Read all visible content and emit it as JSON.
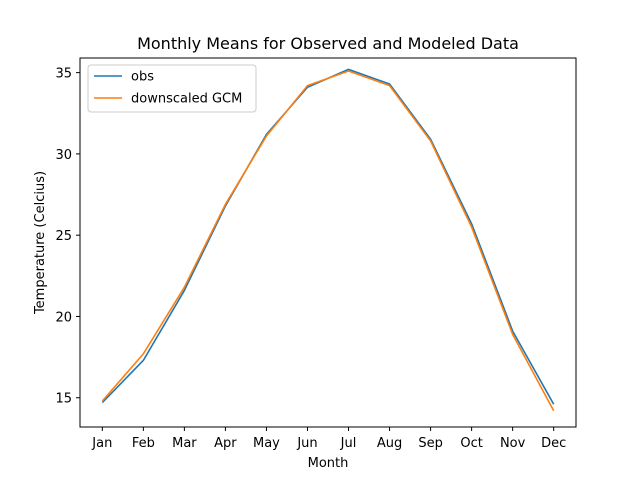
{
  "chart_data": {
    "type": "line",
    "title": "Monthly Means for Observed and Modeled Data",
    "xlabel": "Month",
    "ylabel": "Temperature (Celcius)",
    "categories": [
      "Jan",
      "Feb",
      "Mar",
      "Apr",
      "May",
      "Jun",
      "Jul",
      "Aug",
      "Sep",
      "Oct",
      "Nov",
      "Dec"
    ],
    "ylim": [
      13.2,
      35.9
    ],
    "yticks": [
      15,
      20,
      25,
      30,
      35
    ],
    "grid": false,
    "legend_position": "top-left",
    "series": [
      {
        "name": "obs",
        "color": "#1f77b4",
        "values": [
          14.7,
          17.3,
          21.6,
          26.8,
          31.2,
          34.1,
          35.2,
          34.3,
          30.9,
          25.7,
          19.1,
          14.6
        ]
      },
      {
        "name": "downscaled GCM",
        "color": "#ff7f0e",
        "values": [
          14.8,
          17.7,
          21.8,
          26.9,
          31.1,
          34.2,
          35.1,
          34.2,
          30.8,
          25.5,
          18.9,
          14.2
        ]
      }
    ]
  }
}
